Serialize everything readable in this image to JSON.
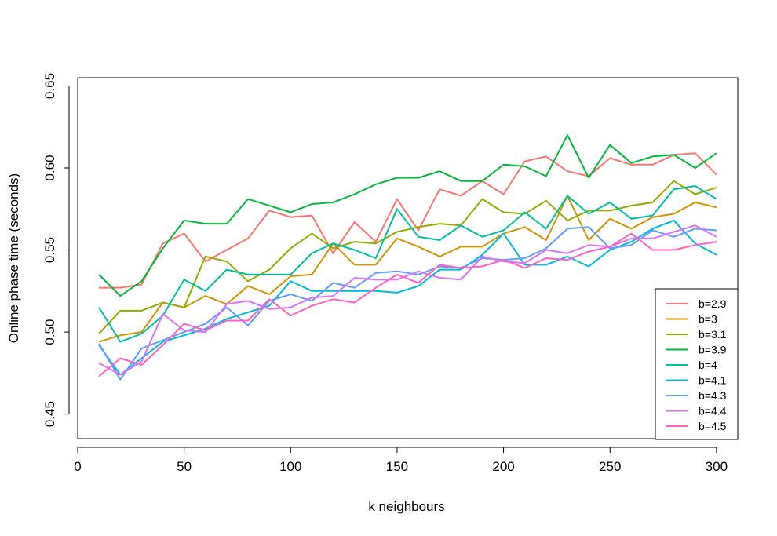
{
  "chart_data": {
    "type": "line",
    "title": "",
    "xlabel": "k neighbours",
    "ylabel": "Online phase time (seconds)",
    "xlim": [
      0,
      310
    ],
    "ylim": [
      0.435,
      0.655
    ],
    "xticks": [
      0,
      50,
      100,
      150,
      200,
      250,
      300
    ],
    "yticks": [
      0.45,
      0.5,
      0.55,
      0.6,
      0.65
    ],
    "xtick_labels": [
      "0",
      "50",
      "100",
      "150",
      "200",
      "250",
      "300"
    ],
    "ytick_labels": [
      "0.45",
      "0.50",
      "0.55",
      "0.60",
      "0.65"
    ],
    "grid": false,
    "legend_position": "bottom-right",
    "x": [
      10,
      20,
      30,
      40,
      50,
      60,
      70,
      80,
      90,
      100,
      110,
      120,
      130,
      140,
      150,
      160,
      170,
      180,
      190,
      200,
      210,
      220,
      230,
      240,
      250,
      260,
      270,
      280,
      290,
      300
    ],
    "series": [
      {
        "name": "b=2.9",
        "color": "#F8766D",
        "values": [
          0.527,
          0.527,
          0.529,
          0.554,
          0.56,
          0.543,
          0.55,
          0.557,
          0.574,
          0.57,
          0.571,
          0.548,
          0.567,
          0.555,
          0.581,
          0.562,
          0.587,
          0.583,
          0.592,
          0.584,
          0.604,
          0.607,
          0.598,
          0.595,
          0.606,
          0.602,
          0.602,
          0.608,
          0.609,
          0.596
        ]
      },
      {
        "name": "b=3",
        "color": "#D39200",
        "values": [
          0.494,
          0.498,
          0.5,
          0.518,
          0.515,
          0.522,
          0.517,
          0.528,
          0.523,
          0.534,
          0.535,
          0.554,
          0.541,
          0.541,
          0.557,
          0.552,
          0.546,
          0.552,
          0.552,
          0.56,
          0.564,
          0.556,
          0.583,
          0.556,
          0.569,
          0.563,
          0.57,
          0.572,
          0.579,
          0.576
        ]
      },
      {
        "name": "b=3.1",
        "color": "#93AA00",
        "values": [
          0.499,
          0.513,
          0.513,
          0.518,
          0.515,
          0.546,
          0.543,
          0.531,
          0.538,
          0.551,
          0.56,
          0.551,
          0.555,
          0.554,
          0.561,
          0.564,
          0.566,
          0.565,
          0.581,
          0.573,
          0.572,
          0.58,
          0.568,
          0.574,
          0.574,
          0.577,
          0.579,
          0.592,
          0.584,
          0.588
        ]
      },
      {
        "name": "b=3.9",
        "color": "#00BA38",
        "values": [
          0.535,
          0.522,
          0.531,
          0.551,
          0.568,
          0.566,
          0.566,
          0.581,
          0.577,
          0.573,
          0.578,
          0.579,
          0.584,
          0.59,
          0.594,
          0.594,
          0.598,
          0.592,
          0.592,
          0.602,
          0.601,
          0.595,
          0.62,
          0.594,
          0.614,
          0.603,
          0.607,
          0.608,
          0.6,
          0.609
        ]
      },
      {
        "name": "b=4",
        "color": "#00C19F",
        "values": [
          0.515,
          0.494,
          0.499,
          0.51,
          0.532,
          0.525,
          0.538,
          0.535,
          0.535,
          0.535,
          0.548,
          0.554,
          0.55,
          0.545,
          0.575,
          0.558,
          0.556,
          0.565,
          0.558,
          0.562,
          0.573,
          0.563,
          0.583,
          0.572,
          0.579,
          0.569,
          0.571,
          0.587,
          0.589,
          0.581
        ]
      },
      {
        "name": "b=4.1",
        "color": "#00B9E3",
        "values": [
          0.492,
          0.474,
          0.484,
          0.494,
          0.498,
          0.502,
          0.508,
          0.512,
          0.516,
          0.531,
          0.525,
          0.525,
          0.525,
          0.525,
          0.524,
          0.528,
          0.538,
          0.538,
          0.547,
          0.56,
          0.541,
          0.541,
          0.546,
          0.54,
          0.55,
          0.555,
          0.563,
          0.568,
          0.554,
          0.547
        ]
      },
      {
        "name": "b=4.3",
        "color": "#619CFF",
        "values": [
          0.493,
          0.471,
          0.49,
          0.495,
          0.5,
          0.505,
          0.515,
          0.504,
          0.519,
          0.523,
          0.519,
          0.53,
          0.527,
          0.536,
          0.537,
          0.535,
          0.54,
          0.539,
          0.545,
          0.544,
          0.545,
          0.551,
          0.563,
          0.564,
          0.551,
          0.553,
          0.562,
          0.558,
          0.563,
          0.562
        ]
      },
      {
        "name": "b=4.4",
        "color": "#DB72FB",
        "values": [
          0.481,
          0.474,
          0.482,
          0.511,
          0.501,
          0.5,
          0.517,
          0.519,
          0.514,
          0.515,
          0.521,
          0.522,
          0.533,
          0.532,
          0.532,
          0.537,
          0.533,
          0.532,
          0.546,
          0.543,
          0.542,
          0.55,
          0.548,
          0.553,
          0.552,
          0.557,
          0.557,
          0.561,
          0.565,
          0.558
        ]
      },
      {
        "name": "b=4.5",
        "color": "#FF61C3",
        "values": [
          0.473,
          0.484,
          0.48,
          0.492,
          0.505,
          0.501,
          0.507,
          0.507,
          0.52,
          0.51,
          0.516,
          0.52,
          0.518,
          0.527,
          0.535,
          0.53,
          0.541,
          0.539,
          0.54,
          0.544,
          0.539,
          0.545,
          0.544,
          0.549,
          0.552,
          0.56,
          0.55,
          0.55,
          0.553,
          0.555
        ]
      }
    ]
  }
}
